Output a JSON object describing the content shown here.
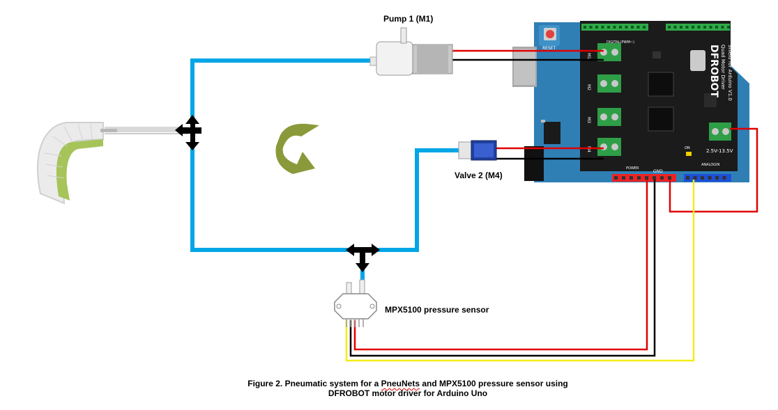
{
  "labels": {
    "pump": "Pump 1 (M1)",
    "valve": "Valve 2 (M4)",
    "sensor": "MPX5100 pressure sensor"
  },
  "caption": {
    "line1_pre": "Figure 2. Pneumatic system for a ",
    "line1_squiggle": "PneuNets",
    "line1_post": " and MPX5100 pressure sensor using",
    "line2": "DFROBOT motor driver for Arduino Uno"
  },
  "board": {
    "brand": "DFROBOT",
    "name_line1": "Quad Motor Driver",
    "name_line2": "Shield for Arduino V1.0",
    "reset": "RESET",
    "digital": "DIGITAL(PWM~)",
    "power": "POWER",
    "analog": "ANALOGIN",
    "voltage": "2.5V-13.5V",
    "on": "ON",
    "gnd": "GND",
    "motor_ports": [
      "M1",
      "M2",
      "M3",
      "M4"
    ]
  },
  "colors": {
    "tube": "#00a6e6",
    "wire_red": "#e00000",
    "wire_black": "#000000",
    "wire_yellow": "#f5ec1a",
    "board_black": "#1b1b1b",
    "arduino_blue": "#2f7fb5",
    "terminal_green": "#2e9e47",
    "header_red": "#ee2222",
    "header_blue": "#1d4fd8",
    "arrow_green": "#8a9a3a"
  }
}
